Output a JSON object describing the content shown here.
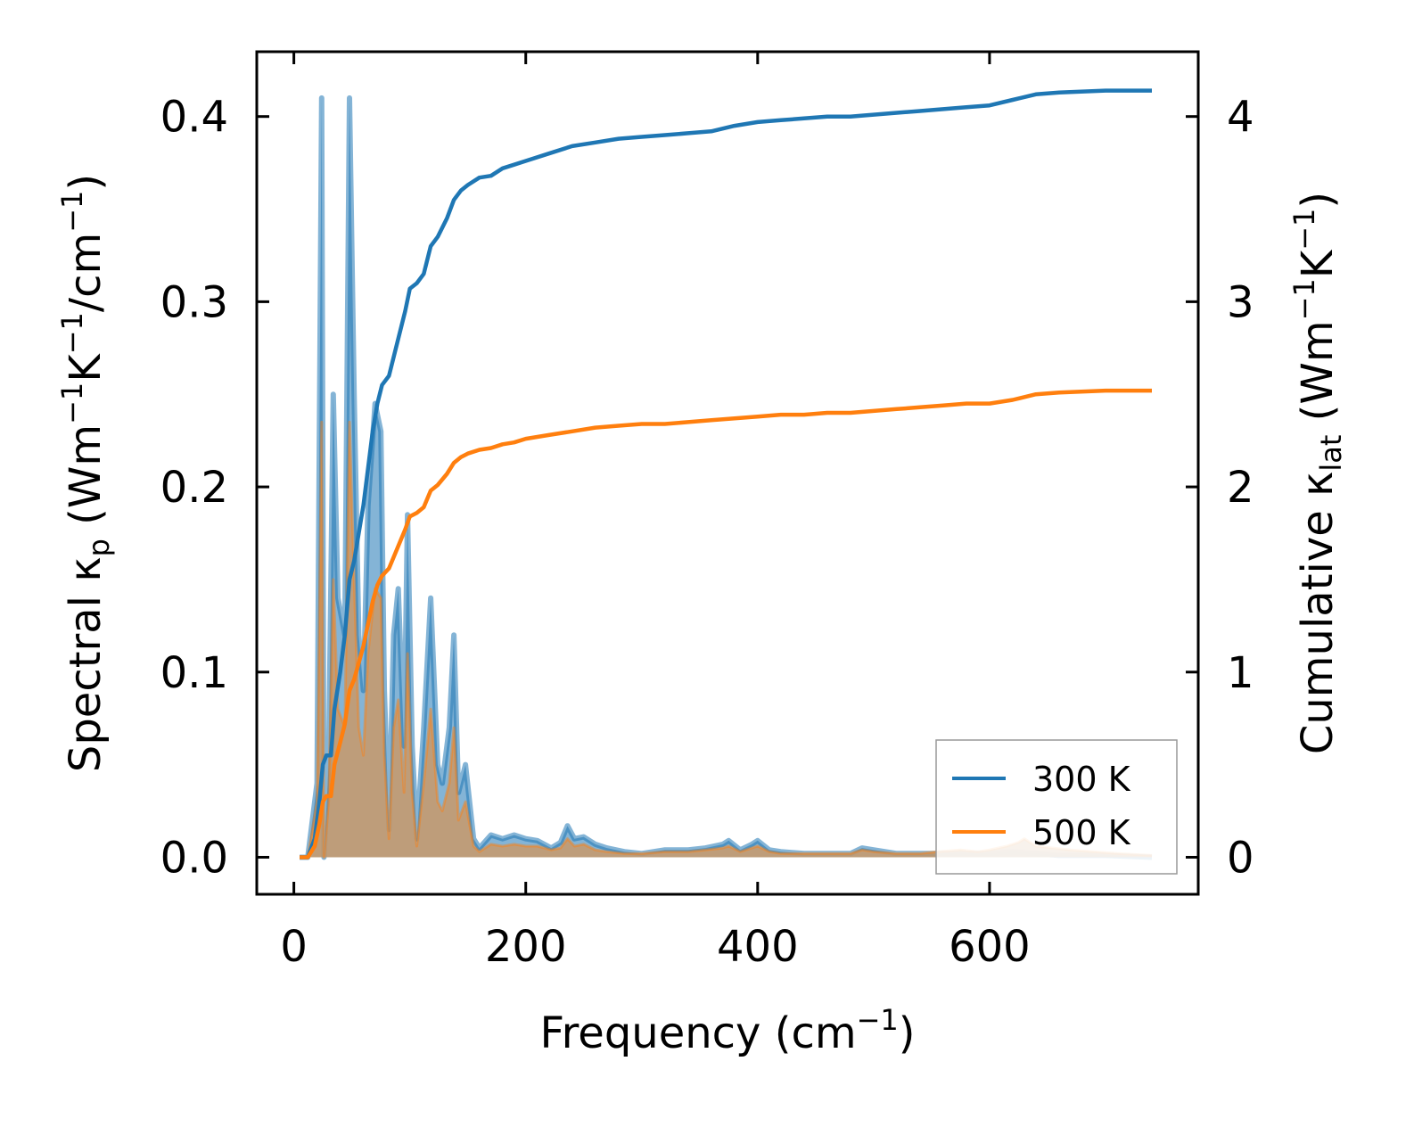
{
  "chart_data": {
    "type": "line",
    "xlabel": {
      "main": "Frequency (cm",
      "sup": "−1",
      "tail": ")"
    },
    "ylabel_left": {
      "t1": "Spectral κ",
      "sub": "p",
      "t2": " (Wm",
      "sup1": "−1",
      "t3": "K",
      "sup2": "−1",
      "t4": "/cm",
      "sup3": "−1",
      "t5": ")"
    },
    "ylabel_right": {
      "t1": "Cumulative κ",
      "sub": "lat",
      "t2": " (Wm",
      "sup1": "−1",
      "t3": "K",
      "sup2": "−1",
      "t4": ")"
    },
    "xlim": [
      -32,
      780
    ],
    "ylim_left": [
      -0.02,
      0.435
    ],
    "ylim_right": [
      -0.2,
      4.35
    ],
    "x_ticks": [
      0,
      200,
      400,
      600
    ],
    "x_tick_labels": [
      "0",
      "200",
      "400",
      "600"
    ],
    "y_left_ticks": [
      0.0,
      0.1,
      0.2,
      0.3,
      0.4
    ],
    "y_left_tick_labels": [
      "0.0",
      "0.1",
      "0.2",
      "0.3",
      "0.4"
    ],
    "y_right_ticks": [
      0,
      1,
      2,
      3,
      4
    ],
    "y_right_tick_labels": [
      "0",
      "1",
      "2",
      "3",
      "4"
    ],
    "legend": {
      "location": "lower-right",
      "entries": [
        "300 K",
        "500 K"
      ]
    },
    "colors": {
      "s300": "#1f77b4",
      "s500": "#ff7f0e",
      "fill500": "#c8996a"
    },
    "spectral": [
      {
        "name": "300 K",
        "points": [
          [
            5,
            0
          ],
          [
            12,
            0
          ],
          [
            20,
            0.04
          ],
          [
            24,
            0.41
          ],
          [
            26,
            0
          ],
          [
            30,
            0.05
          ],
          [
            34,
            0.25
          ],
          [
            38,
            0.14
          ],
          [
            44,
            0.12
          ],
          [
            48,
            0.41
          ],
          [
            52,
            0.25
          ],
          [
            56,
            0.12
          ],
          [
            60,
            0.09
          ],
          [
            64,
            0.19
          ],
          [
            70,
            0.245
          ],
          [
            75,
            0.23
          ],
          [
            78,
            0.09
          ],
          [
            82,
            0.015
          ],
          [
            86,
            0.12
          ],
          [
            90,
            0.145
          ],
          [
            95,
            0.06
          ],
          [
            98,
            0.185
          ],
          [
            102,
            0.06
          ],
          [
            106,
            0.01
          ],
          [
            112,
            0.07
          ],
          [
            118,
            0.14
          ],
          [
            124,
            0.05
          ],
          [
            128,
            0.04
          ],
          [
            134,
            0.07
          ],
          [
            138,
            0.12
          ],
          [
            142,
            0.035
          ],
          [
            148,
            0.05
          ],
          [
            155,
            0.01
          ],
          [
            160,
            0.005
          ],
          [
            170,
            0.012
          ],
          [
            180,
            0.01
          ],
          [
            190,
            0.012
          ],
          [
            200,
            0.01
          ],
          [
            210,
            0.009
          ],
          [
            222,
            0.005
          ],
          [
            230,
            0.008
          ],
          [
            236,
            0.017
          ],
          [
            242,
            0.01
          ],
          [
            250,
            0.011
          ],
          [
            260,
            0.007
          ],
          [
            270,
            0.005
          ],
          [
            285,
            0.003
          ],
          [
            300,
            0.002
          ],
          [
            320,
            0.004
          ],
          [
            340,
            0.004
          ],
          [
            355,
            0.005
          ],
          [
            370,
            0.007
          ],
          [
            375,
            0.009
          ],
          [
            385,
            0.004
          ],
          [
            395,
            0.007
          ],
          [
            400,
            0.009
          ],
          [
            410,
            0.004
          ],
          [
            420,
            0.003
          ],
          [
            440,
            0.002
          ],
          [
            460,
            0.002
          ],
          [
            480,
            0.002
          ],
          [
            490,
            0.005
          ],
          [
            500,
            0.004
          ],
          [
            520,
            0.002
          ],
          [
            540,
            0.002
          ],
          [
            560,
            0.002
          ],
          [
            580,
            0.002
          ],
          [
            600,
            0.002
          ],
          [
            620,
            0.003
          ],
          [
            640,
            0.002
          ],
          [
            660,
            0.001
          ],
          [
            700,
            0.001
          ],
          [
            740,
            0
          ]
        ]
      },
      {
        "name": "500 K",
        "points": [
          [
            5,
            0
          ],
          [
            12,
            0
          ],
          [
            20,
            0.03
          ],
          [
            24,
            0.235
          ],
          [
            26,
            0
          ],
          [
            30,
            0.03
          ],
          [
            34,
            0.15
          ],
          [
            38,
            0.08
          ],
          [
            44,
            0.07
          ],
          [
            48,
            0.235
          ],
          [
            52,
            0.15
          ],
          [
            56,
            0.07
          ],
          [
            60,
            0.055
          ],
          [
            64,
            0.11
          ],
          [
            70,
            0.145
          ],
          [
            75,
            0.14
          ],
          [
            78,
            0.055
          ],
          [
            82,
            0.01
          ],
          [
            86,
            0.07
          ],
          [
            90,
            0.085
          ],
          [
            95,
            0.035
          ],
          [
            98,
            0.11
          ],
          [
            102,
            0.035
          ],
          [
            106,
            0.006
          ],
          [
            112,
            0.04
          ],
          [
            118,
            0.08
          ],
          [
            124,
            0.03
          ],
          [
            128,
            0.025
          ],
          [
            134,
            0.04
          ],
          [
            138,
            0.07
          ],
          [
            142,
            0.02
          ],
          [
            148,
            0.03
          ],
          [
            155,
            0.006
          ],
          [
            160,
            0.003
          ],
          [
            170,
            0.007
          ],
          [
            180,
            0.006
          ],
          [
            190,
            0.007
          ],
          [
            200,
            0.006
          ],
          [
            210,
            0.006
          ],
          [
            222,
            0.004
          ],
          [
            230,
            0.005
          ],
          [
            236,
            0.01
          ],
          [
            242,
            0.006
          ],
          [
            250,
            0.007
          ],
          [
            260,
            0.004
          ],
          [
            270,
            0.003
          ],
          [
            285,
            0.002
          ],
          [
            300,
            0.002
          ],
          [
            320,
            0.003
          ],
          [
            340,
            0.003
          ],
          [
            355,
            0.004
          ],
          [
            370,
            0.005
          ],
          [
            375,
            0.006
          ],
          [
            385,
            0.003
          ],
          [
            395,
            0.005
          ],
          [
            400,
            0.006
          ],
          [
            410,
            0.003
          ],
          [
            420,
            0.002
          ],
          [
            440,
            0.002
          ],
          [
            460,
            0.002
          ],
          [
            480,
            0.002
          ],
          [
            490,
            0.004
          ],
          [
            500,
            0.003
          ],
          [
            520,
            0.002
          ],
          [
            540,
            0.002
          ],
          [
            555,
            0.003
          ],
          [
            575,
            0.004
          ],
          [
            590,
            0.003
          ],
          [
            600,
            0.004
          ],
          [
            615,
            0.006
          ],
          [
            625,
            0.008
          ],
          [
            630,
            0.01
          ],
          [
            640,
            0.006
          ],
          [
            655,
            0.005
          ],
          [
            670,
            0.004
          ],
          [
            690,
            0.003
          ],
          [
            710,
            0.002
          ],
          [
            740,
            0.001
          ]
        ]
      }
    ],
    "cumulative": [
      {
        "name": "300 K",
        "points": [
          [
            5,
            0
          ],
          [
            12,
            0
          ],
          [
            18,
            0.1
          ],
          [
            22,
            0.3
          ],
          [
            25,
            0.5
          ],
          [
            28,
            0.55
          ],
          [
            32,
            0.55
          ],
          [
            35,
            0.8
          ],
          [
            40,
            1.0
          ],
          [
            44,
            1.2
          ],
          [
            48,
            1.5
          ],
          [
            52,
            1.6
          ],
          [
            56,
            1.75
          ],
          [
            60,
            1.9
          ],
          [
            64,
            2.1
          ],
          [
            68,
            2.3
          ],
          [
            72,
            2.45
          ],
          [
            76,
            2.55
          ],
          [
            82,
            2.6
          ],
          [
            86,
            2.7
          ],
          [
            90,
            2.8
          ],
          [
            96,
            2.95
          ],
          [
            100,
            3.07
          ],
          [
            106,
            3.1
          ],
          [
            112,
            3.15
          ],
          [
            118,
            3.3
          ],
          [
            124,
            3.35
          ],
          [
            132,
            3.45
          ],
          [
            138,
            3.55
          ],
          [
            144,
            3.6
          ],
          [
            150,
            3.63
          ],
          [
            160,
            3.67
          ],
          [
            170,
            3.68
          ],
          [
            180,
            3.72
          ],
          [
            190,
            3.74
          ],
          [
            200,
            3.76
          ],
          [
            220,
            3.8
          ],
          [
            240,
            3.84
          ],
          [
            260,
            3.86
          ],
          [
            280,
            3.88
          ],
          [
            300,
            3.89
          ],
          [
            320,
            3.9
          ],
          [
            340,
            3.91
          ],
          [
            360,
            3.92
          ],
          [
            380,
            3.95
          ],
          [
            400,
            3.97
          ],
          [
            420,
            3.98
          ],
          [
            440,
            3.99
          ],
          [
            460,
            4.0
          ],
          [
            480,
            4.0
          ],
          [
            500,
            4.01
          ],
          [
            520,
            4.02
          ],
          [
            540,
            4.03
          ],
          [
            560,
            4.04
          ],
          [
            580,
            4.05
          ],
          [
            600,
            4.06
          ],
          [
            620,
            4.09
          ],
          [
            640,
            4.12
          ],
          [
            660,
            4.13
          ],
          [
            700,
            4.14
          ],
          [
            740,
            4.14
          ]
        ]
      },
      {
        "name": "500 K",
        "points": [
          [
            5,
            0
          ],
          [
            12,
            0
          ],
          [
            18,
            0.06
          ],
          [
            22,
            0.18
          ],
          [
            25,
            0.3
          ],
          [
            28,
            0.33
          ],
          [
            32,
            0.33
          ],
          [
            35,
            0.5
          ],
          [
            40,
            0.62
          ],
          [
            44,
            0.72
          ],
          [
            48,
            0.9
          ],
          [
            52,
            0.96
          ],
          [
            56,
            1.05
          ],
          [
            60,
            1.14
          ],
          [
            64,
            1.26
          ],
          [
            68,
            1.38
          ],
          [
            72,
            1.47
          ],
          [
            76,
            1.52
          ],
          [
            82,
            1.56
          ],
          [
            86,
            1.62
          ],
          [
            90,
            1.68
          ],
          [
            96,
            1.77
          ],
          [
            100,
            1.84
          ],
          [
            106,
            1.86
          ],
          [
            112,
            1.89
          ],
          [
            118,
            1.98
          ],
          [
            124,
            2.01
          ],
          [
            132,
            2.07
          ],
          [
            138,
            2.13
          ],
          [
            144,
            2.16
          ],
          [
            150,
            2.18
          ],
          [
            160,
            2.2
          ],
          [
            170,
            2.21
          ],
          [
            180,
            2.23
          ],
          [
            190,
            2.24
          ],
          [
            200,
            2.26
          ],
          [
            220,
            2.28
          ],
          [
            240,
            2.3
          ],
          [
            260,
            2.32
          ],
          [
            280,
            2.33
          ],
          [
            300,
            2.34
          ],
          [
            320,
            2.34
          ],
          [
            340,
            2.35
          ],
          [
            360,
            2.36
          ],
          [
            380,
            2.37
          ],
          [
            400,
            2.38
          ],
          [
            420,
            2.39
          ],
          [
            440,
            2.39
          ],
          [
            460,
            2.4
          ],
          [
            480,
            2.4
          ],
          [
            500,
            2.41
          ],
          [
            520,
            2.42
          ],
          [
            540,
            2.43
          ],
          [
            560,
            2.44
          ],
          [
            580,
            2.45
          ],
          [
            600,
            2.45
          ],
          [
            620,
            2.47
          ],
          [
            640,
            2.5
          ],
          [
            660,
            2.51
          ],
          [
            700,
            2.52
          ],
          [
            740,
            2.52
          ]
        ]
      }
    ]
  }
}
